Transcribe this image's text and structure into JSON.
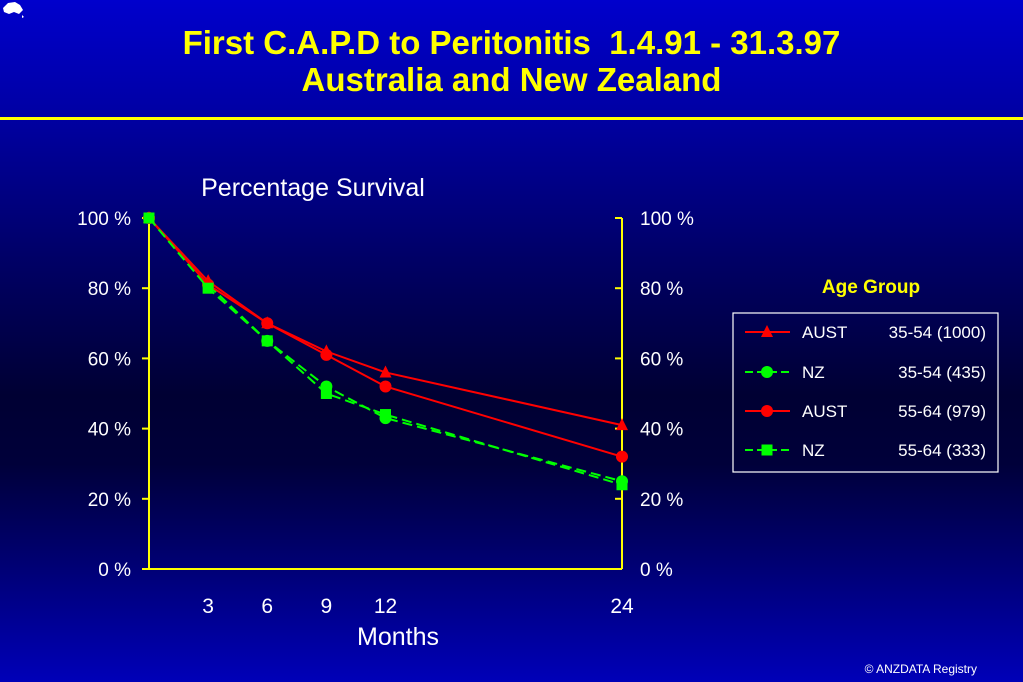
{
  "slide": {
    "title_line1": "First C.A.P.D to Peritonitis  1.4.91 - 31.3.97",
    "title_line2": "Australia and New Zealand",
    "footer": "© ANZDATA Registry"
  },
  "chart_data": {
    "type": "line",
    "title": "Percentage Survival",
    "xlabel": "Months",
    "ylabel": "",
    "x_ticks": [
      3,
      6,
      9,
      12,
      24
    ],
    "xlim": [
      0,
      24
    ],
    "ylim": [
      0,
      100
    ],
    "y_ticks": [
      "0 %",
      "20 %",
      "40 %",
      "60 %",
      "80 %",
      "100 %"
    ],
    "y_tick_values": [
      0,
      20,
      40,
      60,
      80,
      100
    ],
    "legend_title": "Age Group",
    "legend_position": "right",
    "series": [
      {
        "name": "AUST  35-54 (1000)",
        "name_a": "AUST",
        "name_b": "35-54 (1000)",
        "color": "#ff0000",
        "marker": "triangle",
        "dash": "solid",
        "x": [
          0,
          3,
          6,
          9,
          12,
          24
        ],
        "values": [
          100,
          82,
          70,
          62,
          56,
          41
        ]
      },
      {
        "name": "NZ  35-54  (435)",
        "name_a": "NZ",
        "name_b": "35-54  (435)",
        "color": "#00ff00",
        "marker": "circle",
        "dash": "dashed",
        "x": [
          0,
          3,
          6,
          9,
          12,
          24
        ],
        "values": [
          100,
          81,
          65,
          52,
          43,
          25
        ]
      },
      {
        "name": "AUST  55-64  (979)",
        "name_a": "AUST",
        "name_b": "55-64  (979)",
        "color": "#ff0000",
        "marker": "circle",
        "dash": "solid",
        "x": [
          0,
          3,
          6,
          9,
          12,
          24
        ],
        "values": [
          100,
          81,
          70,
          61,
          52,
          32
        ]
      },
      {
        "name": "NZ  55-64  (333)",
        "name_a": "NZ",
        "name_b": "55-64  (333)",
        "color": "#00ff00",
        "marker": "square",
        "dash": "dashed",
        "x": [
          0,
          3,
          6,
          9,
          12,
          24
        ],
        "values": [
          100,
          80,
          65,
          50,
          44,
          24
        ]
      }
    ],
    "colors": {
      "axis": "#ffff00",
      "text": "#ffffff",
      "legend_title": "#ffff00",
      "background": "#000080"
    }
  }
}
